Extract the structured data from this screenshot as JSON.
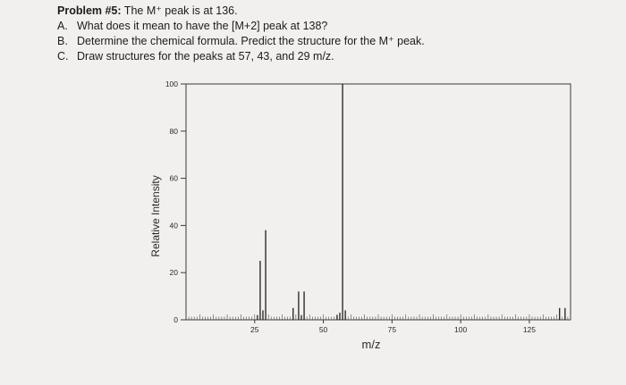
{
  "problem": {
    "title_bold": "Problem #5:",
    "title_rest": " The M⁺ peak is at 136.",
    "items": [
      {
        "letter": "A.",
        "text": "What does it mean to have the [M+2] peak at 138?"
      },
      {
        "letter": "B.",
        "text": "Determine the chemical formula. Predict the structure for the M⁺ peak."
      },
      {
        "letter": "C.",
        "text": "Draw structures for the peaks at 57, 43, and 29 m/z."
      }
    ]
  },
  "chart_data": {
    "type": "bar",
    "title": "",
    "xlabel": "m/z",
    "ylabel": "Relative Intensity",
    "xlim": [
      0,
      140
    ],
    "ylim": [
      0,
      100
    ],
    "x_ticks": [
      25,
      50,
      75,
      100,
      125
    ],
    "y_ticks": [
      0,
      20,
      40,
      60,
      80,
      100
    ],
    "grid": false,
    "legend": "none",
    "peaks": [
      {
        "mz": 26,
        "intensity": 2
      },
      {
        "mz": 27,
        "intensity": 25
      },
      {
        "mz": 28,
        "intensity": 4
      },
      {
        "mz": 29,
        "intensity": 38
      },
      {
        "mz": 39,
        "intensity": 5
      },
      {
        "mz": 41,
        "intensity": 12
      },
      {
        "mz": 42,
        "intensity": 2
      },
      {
        "mz": 43,
        "intensity": 12
      },
      {
        "mz": 55,
        "intensity": 2
      },
      {
        "mz": 56,
        "intensity": 3
      },
      {
        "mz": 57,
        "intensity": 100
      },
      {
        "mz": 58,
        "intensity": 4
      },
      {
        "mz": 136,
        "intensity": 5
      },
      {
        "mz": 138,
        "intensity": 5
      }
    ]
  }
}
